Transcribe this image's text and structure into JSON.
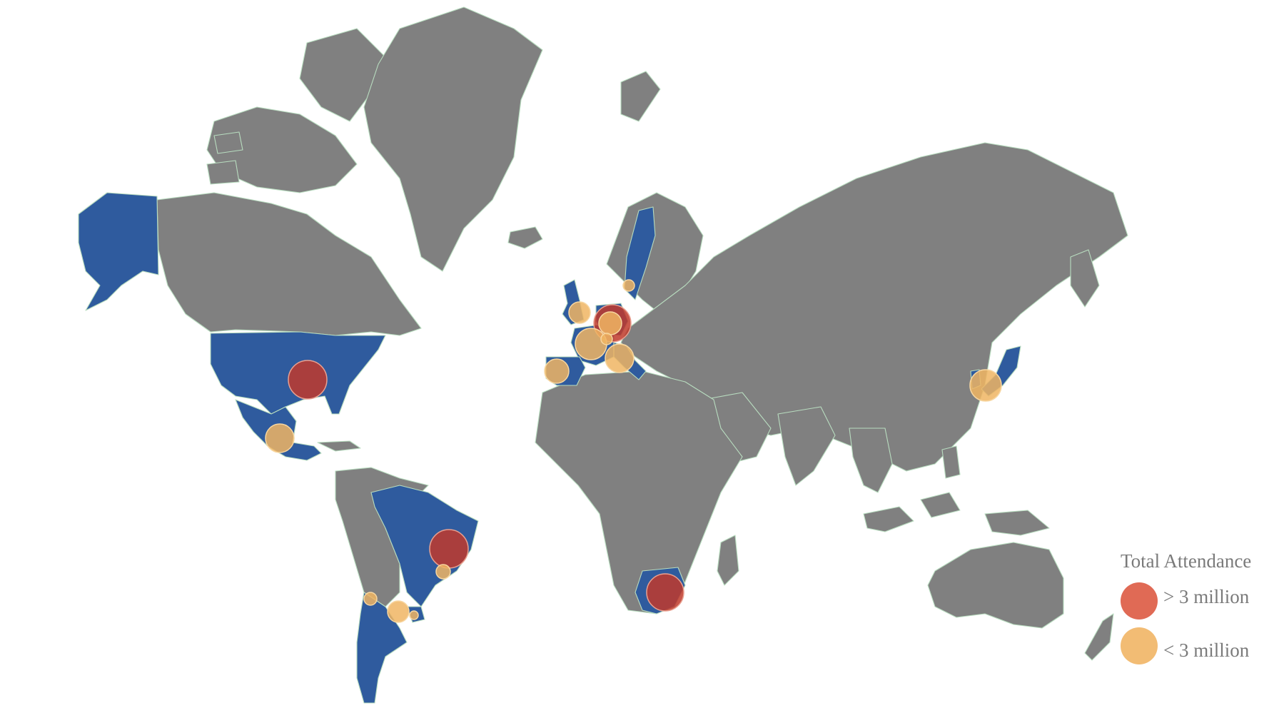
{
  "legend": {
    "title": "Total Attendance",
    "items": [
      {
        "label": "> 3 million",
        "color": "#e06a55"
      },
      {
        "label": "< 3 million",
        "color": "#f2bc74"
      }
    ]
  },
  "colors": {
    "land": "#808080",
    "host_country": "#2f5b9e",
    "border": "#b8dcbf",
    "over_3m": "#c0392b",
    "under_3m": "#f0b563"
  },
  "host_countries": [
    "United States",
    "Mexico",
    "Brazil",
    "Argentina",
    "Uruguay",
    "Chile",
    "Sweden",
    "United Kingdom",
    "France",
    "Germany",
    "Switzerland",
    "Italy",
    "Spain",
    "South Africa",
    "Japan",
    "South Korea"
  ],
  "bubbles": [
    {
      "location": "United States",
      "category": "> 3 million"
    },
    {
      "location": "Brazil",
      "category": "> 3 million"
    },
    {
      "location": "Germany",
      "category": "> 3 million"
    },
    {
      "location": "South Africa",
      "category": "> 3 million"
    },
    {
      "location": "Mexico",
      "category": "< 3 million"
    },
    {
      "location": "Sweden",
      "category": "< 3 million"
    },
    {
      "location": "United Kingdom",
      "category": "< 3 million"
    },
    {
      "location": "Germany",
      "category": "< 3 million"
    },
    {
      "location": "France",
      "category": "< 3 million"
    },
    {
      "location": "Switzerland",
      "category": "< 3 million"
    },
    {
      "location": "Italy",
      "category": "< 3 million"
    },
    {
      "location": "Spain",
      "category": "< 3 million"
    },
    {
      "location": "Japan",
      "category": "< 3 million"
    },
    {
      "location": "Argentina",
      "category": "< 3 million"
    },
    {
      "location": "Uruguay",
      "category": "< 3 million"
    },
    {
      "location": "Chile",
      "category": "< 3 million"
    },
    {
      "location": "Brazil",
      "category": "< 3 million"
    }
  ]
}
